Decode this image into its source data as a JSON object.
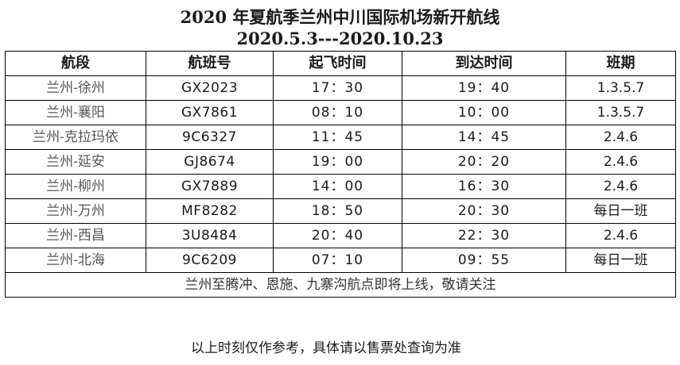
{
  "title": {
    "line1": "2020 年夏航季兰州中川国际机场新开航线",
    "line2": "2020.5.3---2020.10.23"
  },
  "table": {
    "headers": [
      "航段",
      "航班号",
      "起飞时间",
      "到达时间",
      "班期"
    ],
    "rows": [
      {
        "route": "兰州-徐州",
        "flight": "GX2023",
        "dep": "17：30",
        "arr": "19：40",
        "days": "1.3.5.7"
      },
      {
        "route": "兰州-襄阳",
        "flight": "GX7861",
        "dep": "08：10",
        "arr": "10：00",
        "days": "1.3.5.7"
      },
      {
        "route": "兰州-克拉玛依",
        "flight": "9C6327",
        "dep": "11：45",
        "arr": "14：45",
        "days": "2.4.6"
      },
      {
        "route": "兰州-延安",
        "flight": "GJ8674",
        "dep": "19：00",
        "arr": "20：20",
        "days": "2.4.6"
      },
      {
        "route": "兰州-柳州",
        "flight": "GX7889",
        "dep": "14：00",
        "arr": "16：30",
        "days": "2.4.6"
      },
      {
        "route": "兰州-万州",
        "flight": "MF8282",
        "dep": "18：50",
        "arr": "20：30",
        "days": "每日一班"
      },
      {
        "route": "兰州-西昌",
        "flight": "3U8484",
        "dep": "20：40",
        "arr": "22：30",
        "days": "2.4.6"
      },
      {
        "route": "兰州-北海",
        "flight": "9C6209",
        "dep": "07：10",
        "arr": "09：55",
        "days": "每日一班"
      }
    ],
    "note": "兰州至腾冲、恩施、九寨沟航点即将上线，敬请关注"
  },
  "footer": "以上时刻仅作参考，具体请以售票处查询为准"
}
